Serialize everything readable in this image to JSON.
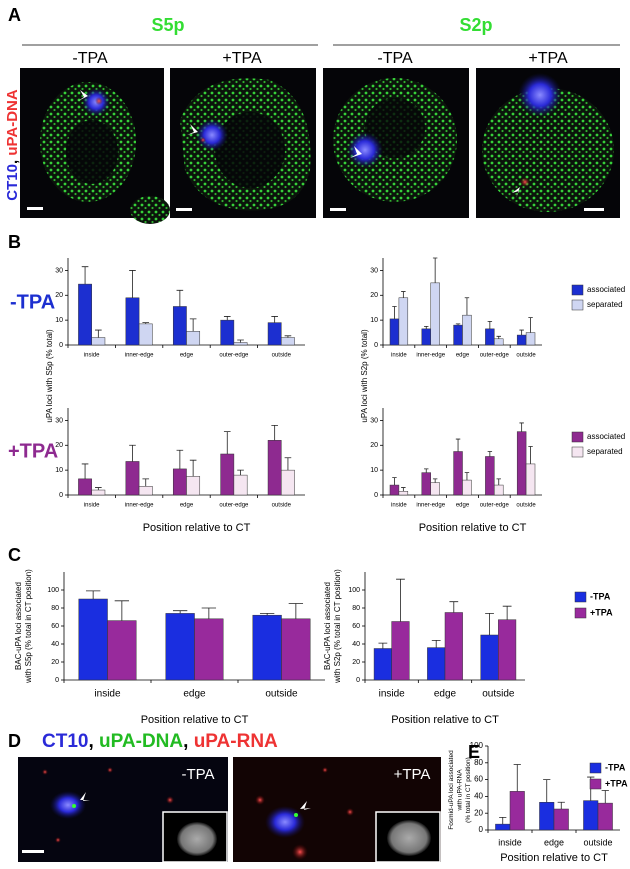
{
  "panel_labels": [
    "A",
    "B",
    "C",
    "D",
    "E"
  ],
  "panel_a": {
    "columns": [
      "S5p",
      "S2p"
    ],
    "conditions": [
      "-TPA",
      "+TPA",
      "-TPA",
      "+TPA"
    ],
    "stain_label": [
      "CT10",
      ", ",
      "uPA-DNA"
    ]
  },
  "panel_b": {
    "row_labels": [
      "-TPA",
      "+TPA"
    ]
  },
  "panel_d": {
    "title": [
      "CT10",
      ", ",
      "uPA-DNA",
      ", ",
      "uPA-RNA"
    ],
    "conditions": [
      "-TPA",
      "+TPA"
    ]
  },
  "chart_data": [
    {
      "type": "bar",
      "ylabel": [
        "uPA loci with S5p (% total)"
      ],
      "categories": [
        "inside",
        "inner-edge",
        "edge",
        "outer-edge",
        "outside"
      ],
      "series": [
        {
          "color": "#1c2fd0",
          "values": [
            24.5,
            19,
            15.5,
            10,
            9
          ],
          "errors": [
            7,
            11,
            6.5,
            1.5,
            2.5
          ]
        },
        {
          "color": "#cfd6f2",
          "values": [
            3,
            8.5,
            5.5,
            1,
            3
          ],
          "errors": [
            3,
            0.5,
            5,
            1,
            0.7
          ]
        }
      ],
      "ylim": [
        0,
        35
      ],
      "yticks": [
        0,
        10,
        20,
        30
      ]
    },
    {
      "type": "bar",
      "ylabel": [
        "uPA loci with S2p (% total)"
      ],
      "categories": [
        "inside",
        "inner-edge",
        "edge",
        "outer-edge",
        "outside"
      ],
      "series": [
        {
          "name": "associated",
          "color": "#1c2fd0",
          "values": [
            10.5,
            6.5,
            8,
            6.5,
            4
          ],
          "errors": [
            5,
            1,
            0.5,
            3,
            2
          ]
        },
        {
          "name": "separated",
          "color": "#cfd6f2",
          "values": [
            19,
            25,
            12,
            2.5,
            5
          ],
          "errors": [
            2.5,
            10,
            7,
            1,
            6
          ]
        }
      ],
      "ylim": [
        0,
        35
      ],
      "yticks": [
        0,
        10,
        20,
        30
      ],
      "legend": "right"
    },
    {
      "type": "bar",
      "xlabel": "Position relative to CT",
      "categories": [
        "inside",
        "inner-edge",
        "edge",
        "outer-edge",
        "outside"
      ],
      "series": [
        {
          "color": "#8e2a90",
          "values": [
            6.5,
            13.5,
            10.5,
            16.5,
            22
          ],
          "errors": [
            6,
            6.5,
            7.5,
            9,
            6
          ]
        },
        {
          "color": "#f5e6f1",
          "values": [
            2,
            3.5,
            7.5,
            8,
            10
          ],
          "errors": [
            1,
            3,
            6.5,
            2,
            5
          ]
        }
      ],
      "ylim": [
        0,
        35
      ],
      "yticks": [
        0,
        10,
        20,
        30
      ]
    },
    {
      "type": "bar",
      "xlabel": "Position relative to CT",
      "categories": [
        "inside",
        "inner-edge",
        "edge",
        "outer-edge",
        "outside"
      ],
      "series": [
        {
          "name": "associated",
          "color": "#8e2a90",
          "values": [
            4,
            9,
            17.5,
            15.5,
            25.5
          ],
          "errors": [
            3,
            1.5,
            5,
            2,
            3.5
          ]
        },
        {
          "name": "separated",
          "color": "#f5e6f1",
          "values": [
            1.5,
            5,
            6,
            4,
            12.5
          ],
          "errors": [
            1.5,
            1.5,
            3,
            2.5,
            7
          ]
        }
      ],
      "ylim": [
        0,
        35
      ],
      "yticks": [
        0,
        10,
        20,
        30
      ],
      "legend": "right"
    },
    {
      "type": "bar",
      "xlabel": "Position relative to CT",
      "ylabel": [
        "BAC-uPA loci  associated",
        "with S5p (% total in CT position)"
      ],
      "categories": [
        "inside",
        "edge",
        "outside"
      ],
      "series": [
        {
          "color": "#1a2ee0",
          "values": [
            90,
            74,
            72
          ],
          "errors": [
            9,
            3,
            2
          ]
        },
        {
          "color": "#982a9c",
          "values": [
            66,
            68,
            68
          ],
          "errors": [
            22,
            12,
            17
          ]
        }
      ],
      "ylim": [
        0,
        120
      ],
      "yticks": [
        0,
        20,
        40,
        60,
        80,
        100
      ]
    },
    {
      "type": "bar",
      "xlabel": "Position relative to CT",
      "ylabel": [
        "BAC-uPA loci  associated",
        "with S2p (% total in CT position)"
      ],
      "categories": [
        "inside",
        "edge",
        "outside"
      ],
      "series": [
        {
          "name": "-TPA",
          "color": "#1a2ee0",
          "values": [
            35,
            36,
            50
          ],
          "errors": [
            6,
            8,
            24
          ]
        },
        {
          "name": "+TPA",
          "color": "#982a9c",
          "values": [
            65,
            75,
            67
          ],
          "errors": [
            47,
            12,
            15
          ]
        }
      ],
      "ylim": [
        0,
        120
      ],
      "yticks": [
        0,
        20,
        40,
        60,
        80,
        100
      ],
      "legend": "right"
    },
    {
      "type": "bar",
      "xlabel": "Position relative to CT",
      "ylabel": [
        "Fosmid-uPA loci associated",
        "with uPA-RNA",
        "(% total in CT position)"
      ],
      "categories": [
        "inside",
        "edge",
        "outside"
      ],
      "series": [
        {
          "name": "-TPA",
          "color": "#1a2ee0",
          "values": [
            7,
            33,
            35
          ],
          "errors": [
            8,
            27,
            28
          ]
        },
        {
          "name": "+TPA",
          "color": "#982a9c",
          "values": [
            46,
            25,
            32
          ],
          "errors": [
            32,
            8,
            15
          ]
        }
      ],
      "ylim": [
        0,
        100
      ],
      "yticks": [
        0,
        20,
        40,
        60,
        80,
        100
      ],
      "legend": "right"
    }
  ]
}
